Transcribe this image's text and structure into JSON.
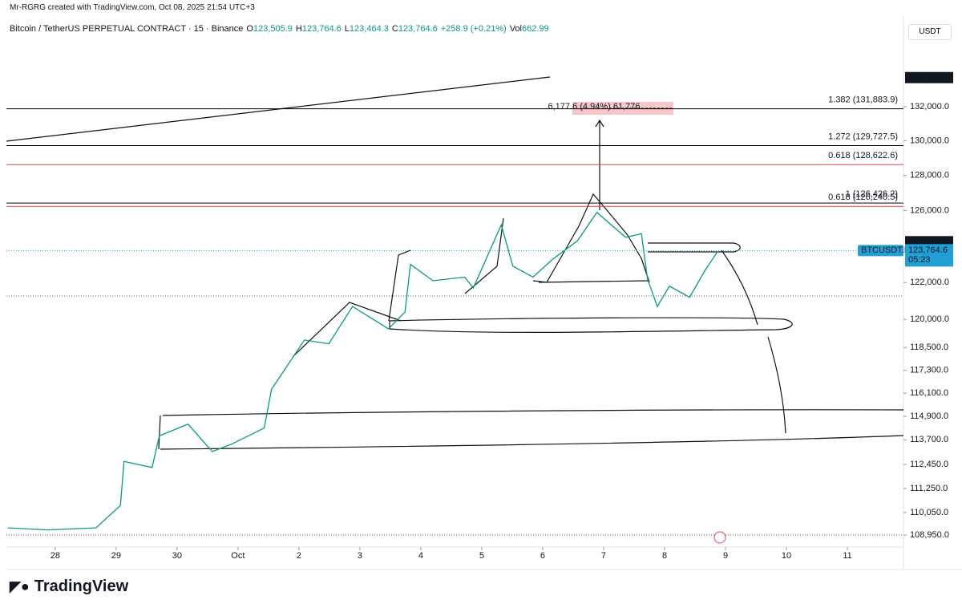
{
  "header": {
    "author_line": "Mr-RGRG created with TradingView.com, Oct 08, 2025 21:54 UTC+3"
  },
  "footer": {
    "logo": "TradingView"
  },
  "chart_data": {
    "type": "line",
    "title": "Bitcoin / TetherUS PERPETUAL CONTRACT · 15 · Binance",
    "legend_items": [
      {
        "key": "O",
        "value": "123,505.9"
      },
      {
        "key": "H",
        "value": "123,764.6"
      },
      {
        "key": "L",
        "value": "123,464.3"
      },
      {
        "key": "C",
        "value": "123,764.6"
      },
      {
        "key": "",
        "value": "+258.9 (+0.21%)"
      },
      {
        "key": "Vol",
        "value": "662.99"
      }
    ],
    "currency": "USDT",
    "ylog": true,
    "grid": false,
    "xlim": [
      -0.8,
      13.92
    ],
    "xticks": [
      {
        "value": 0,
        "label": "28"
      },
      {
        "value": 1,
        "label": "29"
      },
      {
        "value": 2,
        "label": "30"
      },
      {
        "value": 3,
        "label": "Oct"
      },
      {
        "value": 4,
        "label": "2"
      },
      {
        "value": 5,
        "label": "3"
      },
      {
        "value": 6,
        "label": "4"
      },
      {
        "value": 7,
        "label": "5"
      },
      {
        "value": 8,
        "label": "6"
      },
      {
        "value": 9,
        "label": "7"
      },
      {
        "value": 10,
        "label": "8"
      },
      {
        "value": 11,
        "label": "9"
      },
      {
        "value": 12,
        "label": "10"
      },
      {
        "value": 13,
        "label": "11"
      }
    ],
    "ylim": [
      108364,
      137380
    ],
    "yticks": [
      {
        "value": 132000,
        "label": "132,000.0"
      },
      {
        "value": 130000,
        "label": "130,000.0"
      },
      {
        "value": 128000,
        "label": "128,000.0"
      },
      {
        "value": 126000,
        "label": "126,000.0"
      },
      {
        "value": 122000,
        "label": "122,000.0"
      },
      {
        "value": 120000,
        "label": "120,000.0"
      },
      {
        "value": 118500,
        "label": "118,500.0"
      },
      {
        "value": 117300,
        "label": "117,300.0"
      },
      {
        "value": 116100,
        "label": "116,100.0"
      },
      {
        "value": 114900,
        "label": "114,900.0"
      },
      {
        "value": 113700,
        "label": "113,700.0"
      },
      {
        "value": 112450,
        "label": "112,450.0"
      },
      {
        "value": 111250,
        "label": "111,250.0"
      },
      {
        "value": 110050,
        "label": "110,050.0"
      },
      {
        "value": 108950,
        "label": "108,950.0"
      }
    ],
    "series": [
      {
        "name": "BTCUSDT.P",
        "color": "#089981",
        "x": [
          -0.78,
          -0.12,
          0.67,
          1.07,
          1.13,
          1.59,
          1.71,
          2.18,
          2.58,
          2.91,
          3.43,
          3.55,
          4.09,
          4.49,
          4.88,
          5.47,
          5.74,
          5.83,
          6.2,
          6.72,
          6.86,
          7.32,
          7.51,
          7.84,
          8.17,
          8.57,
          8.89,
          9.36,
          9.62,
          9.72,
          9.88,
          10.08,
          10.41,
          10.67,
          10.87
        ],
        "values": [
          109300,
          109200,
          109300,
          110400,
          112600,
          112300,
          113900,
          114500,
          113100,
          113500,
          114300,
          116300,
          118900,
          118700,
          120700,
          119500,
          120400,
          123000,
          122100,
          122300,
          121700,
          125200,
          122900,
          122300,
          123300,
          124300,
          125900,
          124500,
          124700,
          122200,
          120700,
          121800,
          121200,
          122700,
          123700
        ]
      }
    ],
    "last_price": {
      "value": 123764.6,
      "label": "123,764.6",
      "timer": "05:23",
      "color": "#22a0d6"
    },
    "price_labels": [
      {
        "value": 133738.1,
        "label": "133,738.1"
      },
      {
        "value": 123943.1,
        "label": "123,943.1"
      },
      {
        "value": 123943.1,
        "label": "123,943.1"
      }
    ],
    "levels": [
      {
        "label": "1.382 (131,883.9)",
        "value": 131883.9,
        "color": "#000000"
      },
      {
        "label": "1.272 (129,727.5)",
        "value": 129727.5,
        "color": "#000000"
      },
      {
        "label": "0.618 (128,622.6)",
        "value": 128622.6,
        "color": "#e0434b"
      },
      {
        "label": "0.618 (126,240.5)",
        "value": 126240.5,
        "color": "#e0434b"
      },
      {
        "label": "1 (126,426.2)",
        "value": 126426.2,
        "color": "#000000"
      }
    ],
    "measure_label": "6,177.6 (4.94%) 61,776"
  }
}
